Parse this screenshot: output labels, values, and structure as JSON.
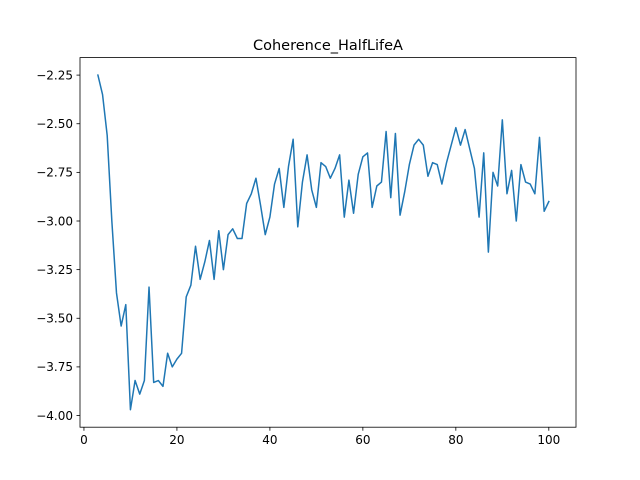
{
  "chart_data": {
    "type": "line",
    "title": "Coherence_HalfLifeA",
    "xlabel": "",
    "ylabel": "",
    "xlim": [
      -0.85,
      105.85
    ],
    "ylim": [
      -4.06,
      -2.16
    ],
    "xticks": [
      0,
      20,
      40,
      60,
      80,
      100
    ],
    "xtick_labels": [
      "0",
      "20",
      "40",
      "60",
      "80",
      "100"
    ],
    "yticks": [
      -4.0,
      -3.75,
      -3.5,
      -3.25,
      -3.0,
      -2.75,
      -2.5,
      -2.25
    ],
    "ytick_labels": [
      "−4.00",
      "−3.75",
      "−3.50",
      "−3.25",
      "−3.00",
      "−2.75",
      "−2.50",
      "−2.25"
    ],
    "grid": false,
    "series_color": "#1f77b4",
    "series": [
      {
        "x": [
          3,
          4,
          5,
          6,
          7,
          8,
          9,
          10,
          11,
          12,
          13,
          14,
          15,
          16,
          17,
          18,
          19,
          20,
          21,
          22,
          23,
          24,
          25,
          26,
          27,
          28,
          29,
          30,
          31,
          32,
          33,
          34,
          35,
          36,
          37,
          38,
          39,
          40,
          41,
          42,
          43,
          44,
          45,
          46,
          47,
          48,
          49,
          50,
          51,
          52,
          53,
          54,
          55,
          56,
          57,
          58,
          59,
          60,
          61,
          62,
          63,
          64,
          65,
          66,
          67,
          68,
          69,
          70,
          71,
          72,
          73,
          74,
          75,
          76,
          77,
          78,
          79,
          80,
          81,
          82,
          83,
          84,
          85,
          86,
          87,
          88,
          89,
          90,
          91,
          92,
          93,
          94,
          95,
          96,
          97,
          98,
          99,
          100
        ],
        "y": [
          -2.25,
          -2.35,
          -2.56,
          -3.0,
          -3.37,
          -3.54,
          -3.43,
          -3.97,
          -3.82,
          -3.89,
          -3.82,
          -3.34,
          -3.83,
          -3.82,
          -3.85,
          -3.68,
          -3.75,
          -3.71,
          -3.68,
          -3.39,
          -3.33,
          -3.13,
          -3.3,
          -3.21,
          -3.1,
          -3.3,
          -3.05,
          -3.25,
          -3.07,
          -3.04,
          -3.09,
          -3.09,
          -2.91,
          -2.86,
          -2.78,
          -2.92,
          -3.07,
          -2.98,
          -2.81,
          -2.73,
          -2.93,
          -2.72,
          -2.58,
          -3.03,
          -2.8,
          -2.66,
          -2.84,
          -2.93,
          -2.7,
          -2.72,
          -2.78,
          -2.73,
          -2.66,
          -2.98,
          -2.79,
          -2.96,
          -2.76,
          -2.67,
          -2.65,
          -2.93,
          -2.82,
          -2.8,
          -2.54,
          -2.88,
          -2.55,
          -2.97,
          -2.85,
          -2.71,
          -2.61,
          -2.58,
          -2.61,
          -2.77,
          -2.7,
          -2.71,
          -2.81,
          -2.7,
          -2.61,
          -2.52,
          -2.61,
          -2.53,
          -2.63,
          -2.73,
          -2.98,
          -2.65,
          -3.16,
          -2.75,
          -2.82,
          -2.48,
          -2.86,
          -2.74,
          -3.0,
          -2.71,
          -2.8,
          -2.81,
          -2.86,
          -2.57,
          -2.95,
          -2.9
        ]
      }
    ]
  }
}
